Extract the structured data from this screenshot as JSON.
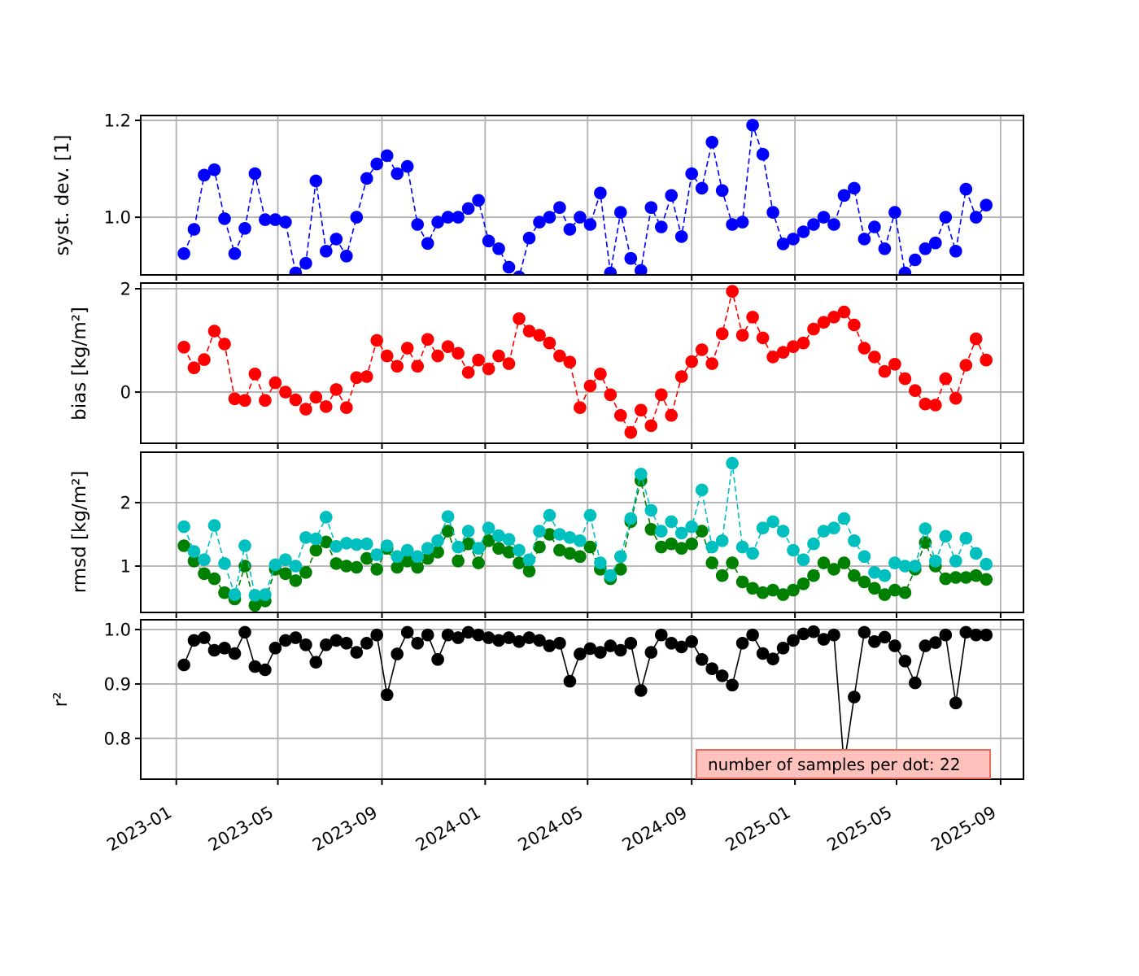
{
  "figure": {
    "background": "#ffffff"
  },
  "colors": {
    "grid": "#b0b0b0",
    "frame": "#000000",
    "tick_label": "#000000"
  },
  "annotation": {
    "text": "number of samples per dot: 22",
    "fill": "#ffc1bc",
    "border": "#ec6a5e"
  },
  "chart_data": {
    "type": "line",
    "x": {
      "axis_start": "2022-11-20",
      "axis_end": "2025-09-28",
      "start_date": "2023-01-10",
      "step_days": 12,
      "count": 80,
      "ticks": [
        {
          "date": "2023-01-01",
          "label": "2023-01"
        },
        {
          "date": "2023-05-01",
          "label": "2023-05"
        },
        {
          "date": "2023-09-01",
          "label": "2023-09"
        },
        {
          "date": "2024-01-01",
          "label": "2024-01"
        },
        {
          "date": "2024-05-01",
          "label": "2024-05"
        },
        {
          "date": "2024-09-01",
          "label": "2024-09"
        },
        {
          "date": "2025-01-01",
          "label": "2025-01"
        },
        {
          "date": "2025-05-01",
          "label": "2025-05"
        },
        {
          "date": "2025-09-01",
          "label": "2025-09"
        }
      ]
    },
    "subplots": [
      {
        "id": "syst-dev",
        "ylabel": "syst. dev. [1]",
        "ylim": [
          0.881,
          1.21
        ],
        "yticks": [
          {
            "value": 1.0,
            "label": "1.0"
          },
          {
            "value": 1.2,
            "label": "1.2"
          }
        ],
        "series": [
          {
            "name": "syst_dev",
            "color": "#0000ff",
            "line": "dashed",
            "marker": "circle",
            "values": [
              0.925,
              0.975,
              1.087,
              1.098,
              0.997,
              0.925,
              0.977,
              1.09,
              0.995,
              0.995,
              0.99,
              0.885,
              0.905,
              1.075,
              0.93,
              0.955,
              0.92,
              1.0,
              1.08,
              1.11,
              1.127,
              1.09,
              1.105,
              0.985,
              0.946,
              0.99,
              1.0,
              1.0,
              1.018,
              1.035,
              0.951,
              0.935,
              0.897,
              0.877,
              0.957,
              0.99,
              1.0,
              1.02,
              0.975,
              1.0,
              0.985,
              1.05,
              0.885,
              1.01,
              0.915,
              0.89,
              1.02,
              0.98,
              1.045,
              0.96,
              1.09,
              1.06,
              1.155,
              1.055,
              0.985,
              0.99,
              1.19,
              1.13,
              1.01,
              0.945,
              0.955,
              0.97,
              0.985,
              1.0,
              0.985,
              1.045,
              1.06,
              0.955,
              0.98,
              0.935,
              1.01,
              0.885,
              0.912,
              0.935,
              0.947,
              1.0,
              0.93,
              1.058,
              1.0,
              1.025
            ]
          }
        ]
      },
      {
        "id": "bias",
        "ylabel": "bias [kg/m²]",
        "ylim": [
          -0.99,
          2.11
        ],
        "yticks": [
          {
            "value": 0,
            "label": "0"
          },
          {
            "value": 2,
            "label": "2"
          }
        ],
        "series": [
          {
            "name": "bias",
            "color": "#ff0000",
            "line": "dashed",
            "marker": "circle",
            "values": [
              0.87,
              0.47,
              0.63,
              1.18,
              0.93,
              -0.13,
              -0.16,
              0.35,
              -0.16,
              0.18,
              0.0,
              -0.15,
              -0.33,
              -0.1,
              -0.28,
              0.05,
              -0.3,
              0.28,
              0.3,
              1.0,
              0.7,
              0.5,
              0.85,
              0.5,
              1.02,
              0.7,
              0.88,
              0.75,
              0.38,
              0.62,
              0.45,
              0.7,
              0.55,
              1.42,
              1.18,
              1.1,
              0.95,
              0.7,
              0.58,
              -0.3,
              0.12,
              0.35,
              -0.05,
              -0.45,
              -0.78,
              -0.35,
              -0.65,
              -0.05,
              -0.45,
              0.3,
              0.59,
              0.82,
              0.55,
              1.13,
              1.95,
              1.1,
              1.45,
              1.05,
              0.68,
              0.77,
              0.88,
              0.95,
              1.22,
              1.35,
              1.45,
              1.55,
              1.3,
              0.85,
              0.68,
              0.4,
              0.54,
              0.26,
              0.03,
              -0.23,
              -0.25,
              0.26,
              -0.12,
              0.52,
              1.03,
              0.62
            ]
          }
        ]
      },
      {
        "id": "rmsd",
        "ylabel": "rmsd [kg/m²]",
        "ylim": [
          0.269,
          2.795
        ],
        "yticks": [
          {
            "value": 1,
            "label": "1"
          },
          {
            "value": 2,
            "label": "2"
          }
        ],
        "series": [
          {
            "name": "rmsd_green",
            "color": "#008000",
            "line": "dashed",
            "marker": "circle",
            "values": [
              1.32,
              1.08,
              0.88,
              0.8,
              0.58,
              0.48,
              1.0,
              0.38,
              0.45,
              0.95,
              0.88,
              0.77,
              0.9,
              1.25,
              1.38,
              1.04,
              1.0,
              0.98,
              1.12,
              0.95,
              1.28,
              0.98,
              1.08,
              0.98,
              1.12,
              1.22,
              1.55,
              1.08,
              1.35,
              1.05,
              1.4,
              1.28,
              1.22,
              1.05,
              0.92,
              1.3,
              1.5,
              1.25,
              1.2,
              1.15,
              1.3,
              0.95,
              0.8,
              0.95,
              1.7,
              2.35,
              1.58,
              1.3,
              1.35,
              1.28,
              1.35,
              1.55,
              1.05,
              0.85,
              1.05,
              0.75,
              0.65,
              0.58,
              0.62,
              0.55,
              0.62,
              0.72,
              0.85,
              1.05,
              0.95,
              1.05,
              0.85,
              0.75,
              0.65,
              0.55,
              0.62,
              0.58,
              0.95,
              1.37,
              1.0,
              0.8,
              0.82,
              0.82,
              0.85,
              0.79
            ]
          },
          {
            "name": "rmsd_cyan",
            "color": "#00bfbf",
            "line": "dashed",
            "marker": "circle",
            "values": [
              1.62,
              1.23,
              1.1,
              1.64,
              1.04,
              0.55,
              1.32,
              0.54,
              0.55,
              1.02,
              1.1,
              1.0,
              1.45,
              1.43,
              1.77,
              1.31,
              1.36,
              1.34,
              1.35,
              1.18,
              1.32,
              1.15,
              1.25,
              1.15,
              1.28,
              1.4,
              1.78,
              1.3,
              1.55,
              1.28,
              1.6,
              1.48,
              1.42,
              1.25,
              1.1,
              1.55,
              1.8,
              1.5,
              1.45,
              1.4,
              1.8,
              1.05,
              0.85,
              1.15,
              1.75,
              2.45,
              1.88,
              1.55,
              1.7,
              1.52,
              1.62,
              2.2,
              1.3,
              1.4,
              2.62,
              1.3,
              1.2,
              1.6,
              1.7,
              1.55,
              1.25,
              1.1,
              1.35,
              1.55,
              1.6,
              1.75,
              1.4,
              1.15,
              0.9,
              0.85,
              1.05,
              1.0,
              1.0,
              1.59,
              1.08,
              1.47,
              1.08,
              1.44,
              1.2,
              1.03
            ]
          }
        ]
      },
      {
        "id": "r2",
        "ylabel": "r²",
        "ylim": [
          0.725,
          1.018
        ],
        "yticks": [
          {
            "value": 0.8,
            "label": "0.8"
          },
          {
            "value": 0.9,
            "label": "0.9"
          },
          {
            "value": 1.0,
            "label": "1.0"
          }
        ],
        "series": [
          {
            "name": "r2",
            "color": "#000000",
            "line": "solid",
            "marker": "circle",
            "values": [
              0.935,
              0.98,
              0.985,
              0.962,
              0.966,
              0.956,
              0.995,
              0.932,
              0.926,
              0.966,
              0.98,
              0.985,
              0.972,
              0.94,
              0.972,
              0.98,
              0.975,
              0.958,
              0.975,
              0.99,
              0.88,
              0.955,
              0.995,
              0.975,
              0.99,
              0.945,
              0.99,
              0.985,
              0.995,
              0.99,
              0.985,
              0.98,
              0.985,
              0.978,
              0.985,
              0.98,
              0.97,
              0.975,
              0.905,
              0.955,
              0.965,
              0.958,
              0.97,
              0.962,
              0.975,
              0.888,
              0.958,
              0.99,
              0.975,
              0.968,
              0.978,
              0.945,
              0.928,
              0.915,
              0.898,
              0.975,
              0.99,
              0.956,
              0.946,
              0.966,
              0.98,
              0.992,
              0.996,
              0.982,
              0.99,
              0.751,
              0.876,
              0.995,
              0.978,
              0.986,
              0.97,
              0.942,
              0.902,
              0.97,
              0.976,
              0.99,
              0.865,
              0.995,
              0.99,
              0.99
            ]
          }
        ]
      }
    ]
  }
}
